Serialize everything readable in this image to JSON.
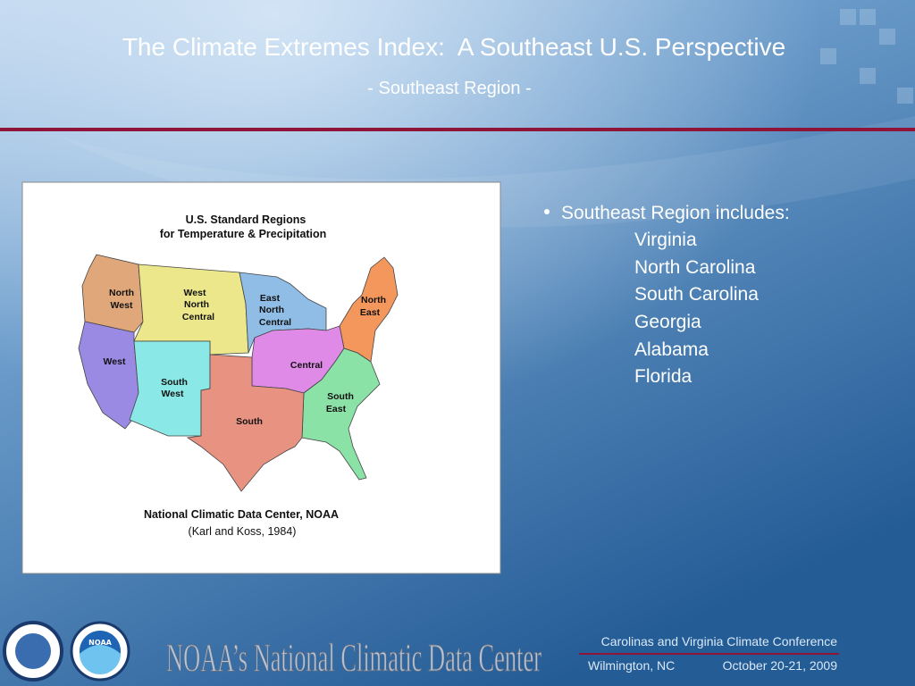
{
  "header": {
    "title": "The Climate Extremes Index:  A Southeast U.S. Perspective",
    "subtitle": "- Southeast Region -"
  },
  "figure": {
    "title_lines": [
      "U.S. Standard Regions",
      "for Temperature & Precipitation"
    ],
    "regions": [
      {
        "lines": [
          "North",
          "West"
        ]
      },
      {
        "lines": [
          "West",
          "North",
          "Central"
        ]
      },
      {
        "lines": [
          "East",
          "North",
          "Central"
        ]
      },
      {
        "lines": [
          "North",
          "East"
        ]
      },
      {
        "lines": [
          "West"
        ]
      },
      {
        "lines": [
          "Central"
        ]
      },
      {
        "lines": [
          "South",
          "West"
        ]
      },
      {
        "lines": [
          "South",
          "East"
        ]
      },
      {
        "lines": [
          "South"
        ]
      }
    ],
    "source": "National Climatic Data Center, NOAA",
    "citation": "(Karl and Koss, 1984)"
  },
  "bullets": {
    "heading": "Southeast Region includes:",
    "items": [
      "Virginia",
      "North Carolina",
      "South Carolina",
      "Georgia",
      "Alabama",
      "Florida"
    ]
  },
  "footer": {
    "logo_text": "NOAA",
    "organization": "NOAA’s National Climatic Data Center",
    "conference": "Carolinas and Virginia Climate Conference",
    "location": "Wilmington, NC",
    "dates": "October 20-21, 2009"
  }
}
